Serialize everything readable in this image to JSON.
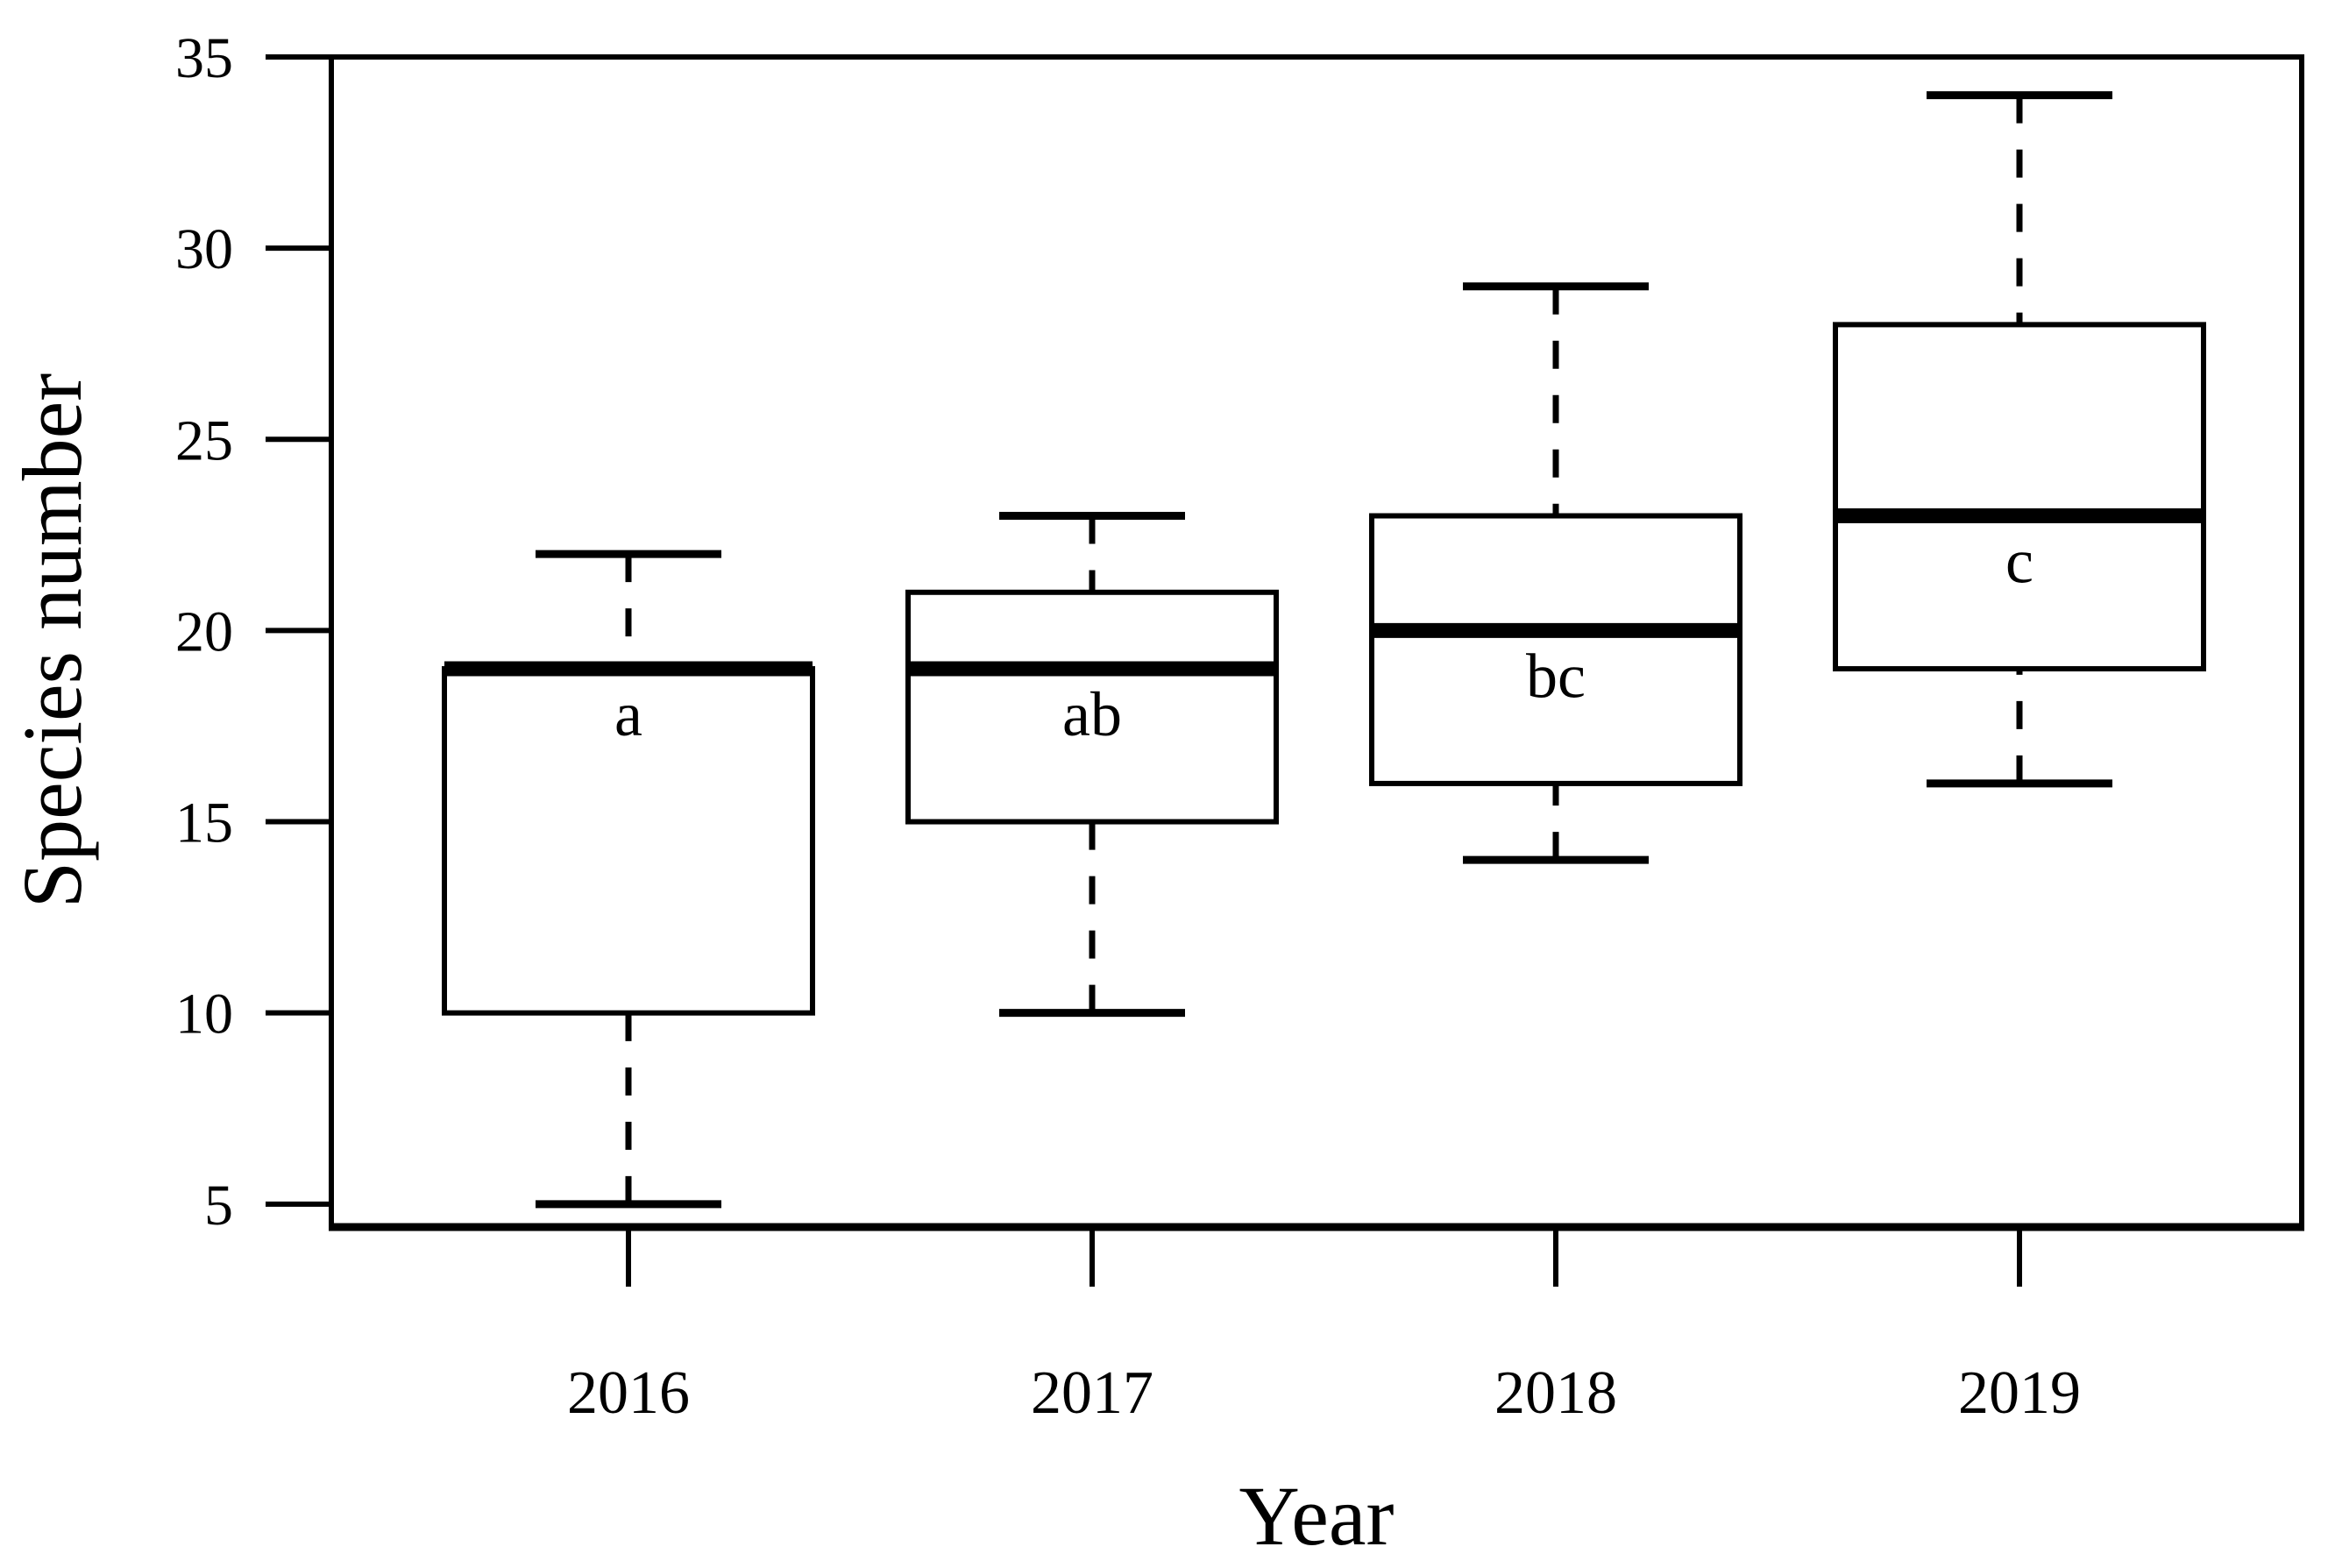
{
  "colors": {
    "foreground": "#000000",
    "background": "#ffffff"
  },
  "chart_data": {
    "type": "boxplot",
    "title": "",
    "xlabel": "Year",
    "ylabel": "Species number",
    "categories": [
      "2016",
      "2017",
      "2018",
      "2019"
    ],
    "y_ticks": [
      5,
      10,
      15,
      20,
      25,
      30,
      35
    ],
    "ylim": [
      4.4,
      35
    ],
    "grid": false,
    "legend": "none",
    "series": [
      {
        "category": "2016",
        "whisker_low": 5,
        "q1": 10,
        "median": 19,
        "q3": 19,
        "whisker_high": 22,
        "sig_label": "a"
      },
      {
        "category": "2017",
        "whisker_low": 10,
        "q1": 15,
        "median": 19,
        "q3": 21,
        "whisker_high": 23,
        "sig_label": "ab"
      },
      {
        "category": "2018",
        "whisker_low": 14,
        "q1": 16,
        "median": 20,
        "q3": 23,
        "whisker_high": 29,
        "sig_label": "bc"
      },
      {
        "category": "2019",
        "whisker_low": 16,
        "q1": 19,
        "median": 23,
        "q3": 28,
        "whisker_high": 34,
        "sig_label": "c"
      }
    ]
  }
}
